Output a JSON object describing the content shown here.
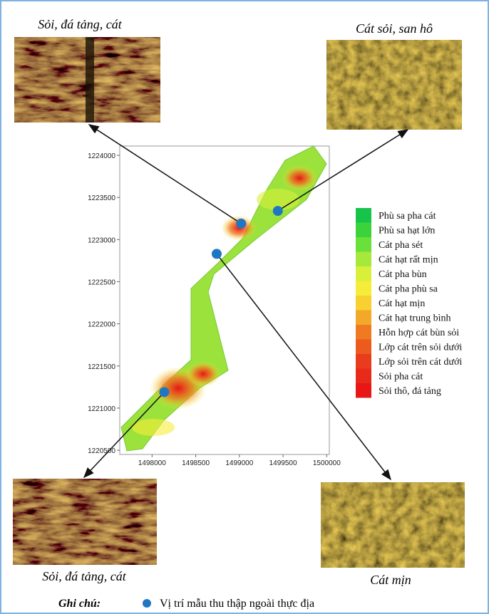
{
  "map": {
    "xlim": [
      1497630,
      1500030
    ],
    "ylim": [
      1220450,
      1224110
    ],
    "xticks": [
      1498000,
      1498500,
      1499000,
      1499500,
      1500000
    ],
    "yticks": [
      1220500,
      1221000,
      1221500,
      1222000,
      1222500,
      1223000,
      1223500,
      1224000
    ],
    "samples": [
      {
        "x": 1499020,
        "y": 1223190
      },
      {
        "x": 1499440,
        "y": 1223340
      },
      {
        "x": 1498740,
        "y": 1222830
      },
      {
        "x": 1498140,
        "y": 1221190
      }
    ],
    "sample_color": "#1f77c4",
    "legend": [
      {
        "label": "Phù sa pha cát",
        "color": "#17c44a"
      },
      {
        "label": "Phù sa hạt lớn",
        "color": "#3ad43a"
      },
      {
        "label": "Cát pha sét",
        "color": "#6ae03a"
      },
      {
        "label": "Cát hạt rất mịn",
        "color": "#a6e83c"
      },
      {
        "label": "Cát pha bùn",
        "color": "#d8f03a"
      },
      {
        "label": "Cát pha phù sa",
        "color": "#f6ec3a"
      },
      {
        "label": "Cát hạt mịn",
        "color": "#f8d030"
      },
      {
        "label": "Cát hạt trung bình",
        "color": "#f3a82a"
      },
      {
        "label": "Hỗn hợp cát bùn sỏi",
        "color": "#ef7a22"
      },
      {
        "label": "Lớp cát trên sỏi dưới",
        "color": "#ec5a1e"
      },
      {
        "label": "Lớp sỏi trên cát dưới",
        "color": "#e93c1c"
      },
      {
        "label": "Sỏi pha cát",
        "color": "#e82a1a"
      },
      {
        "label": "Sỏi thô, đá tảng",
        "color": "#e81616"
      }
    ]
  },
  "images": [
    {
      "caption": "Sỏi, đá tảng, cát"
    },
    {
      "caption": "Cát sỏi, san hô"
    },
    {
      "caption": "Sỏi, đá tảng, cát"
    },
    {
      "caption": "Cát mịn"
    }
  ],
  "note": {
    "label": "Ghi chú:",
    "text": "Vị trí mẫu thu thập ngoài thực địa"
  }
}
